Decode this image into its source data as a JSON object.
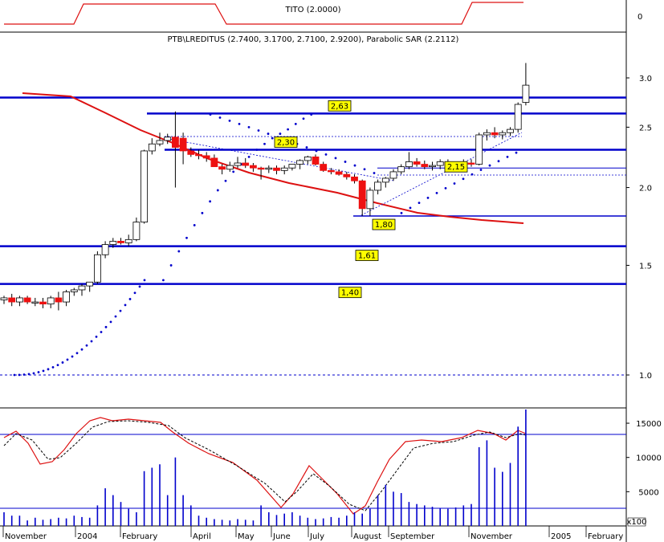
{
  "indicator_top": {
    "title": "TITO (2.0000)",
    "axis_label": "0"
  },
  "main_title": "PTB\\LREDITUS (2.7400, 3.1700, 2.7100, 2.9200), Parabolic SAR (2.2112)",
  "price_axis": {
    "ticks": [
      "3.0",
      "2.5",
      "2.0",
      "1.5",
      "1.0"
    ]
  },
  "volume_axis": {
    "ticks": [
      "15000",
      "10000",
      "5000"
    ],
    "unit": "x100"
  },
  "x_axis": {
    "labels": [
      "November",
      "2004",
      "February",
      "April",
      "May",
      "June",
      "July",
      "August",
      "September",
      "November",
      "2005",
      "February"
    ]
  },
  "price_labels": [
    "2,63",
    "2,30",
    "2,15",
    "1,80",
    "1,61",
    "1,40"
  ],
  "colors": {
    "up": "#ffffff",
    "down": "#ee1111",
    "sar": "#0000cc",
    "hline": "#0000cc",
    "ma": "#dd1111"
  },
  "chart_data": {
    "type": "candlestick",
    "title": "PTB\\LREDITUS (2.7400, 3.1700, 2.7100, 2.9200), Parabolic SAR (2.2112)",
    "ylim": [
      0.97,
      3.3
    ],
    "levels": [
      2.79,
      2.63,
      2.3,
      2.15,
      1.8,
      1.61,
      1.4,
      1.0
    ],
    "candles": [
      [
        1.32,
        1.34,
        1.3,
        1.33
      ],
      [
        1.33,
        1.35,
        1.29,
        1.31
      ],
      [
        1.31,
        1.34,
        1.29,
        1.33
      ],
      [
        1.33,
        1.34,
        1.3,
        1.31
      ],
      [
        1.31,
        1.33,
        1.29,
        1.31
      ],
      [
        1.31,
        1.33,
        1.28,
        1.3
      ],
      [
        1.3,
        1.34,
        1.28,
        1.33
      ],
      [
        1.33,
        1.36,
        1.27,
        1.31
      ],
      [
        1.31,
        1.37,
        1.29,
        1.36
      ],
      [
        1.36,
        1.38,
        1.34,
        1.37
      ],
      [
        1.37,
        1.4,
        1.34,
        1.39
      ],
      [
        1.39,
        1.41,
        1.36,
        1.41
      ],
      [
        1.41,
        1.58,
        1.4,
        1.56
      ],
      [
        1.56,
        1.64,
        1.54,
        1.62
      ],
      [
        1.62,
        1.66,
        1.6,
        1.64
      ],
      [
        1.64,
        1.66,
        1.62,
        1.63
      ],
      [
        1.63,
        1.68,
        1.61,
        1.65
      ],
      [
        1.65,
        1.79,
        1.64,
        1.76
      ],
      [
        1.76,
        2.3,
        1.75,
        2.29
      ],
      [
        2.29,
        2.4,
        2.26,
        2.35
      ],
      [
        2.35,
        2.45,
        2.33,
        2.38
      ],
      [
        2.38,
        2.44,
        2.35,
        2.41
      ],
      [
        2.41,
        2.65,
        2.0,
        2.32
      ],
      [
        2.4,
        2.45,
        2.18,
        2.29
      ],
      [
        2.29,
        2.32,
        2.24,
        2.26
      ],
      [
        2.26,
        2.3,
        2.22,
        2.25
      ],
      [
        2.25,
        2.28,
        2.2,
        2.23
      ],
      [
        2.23,
        2.26,
        2.16,
        2.16
      ],
      [
        2.16,
        2.18,
        2.1,
        2.14
      ],
      [
        2.14,
        2.2,
        2.12,
        2.17
      ],
      [
        2.17,
        2.24,
        2.15,
        2.19
      ],
      [
        2.19,
        2.23,
        2.15,
        2.17
      ],
      [
        2.17,
        2.19,
        2.12,
        2.15
      ],
      [
        2.15,
        2.16,
        2.06,
        2.14
      ],
      [
        2.14,
        2.17,
        2.11,
        2.15
      ],
      [
        2.15,
        2.17,
        2.1,
        2.13
      ],
      [
        2.13,
        2.17,
        2.1,
        2.15
      ],
      [
        2.15,
        2.18,
        2.13,
        2.18
      ],
      [
        2.18,
        2.22,
        2.14,
        2.21
      ],
      [
        2.21,
        2.25,
        2.18,
        2.24
      ],
      [
        2.24,
        2.26,
        2.17,
        2.18
      ],
      [
        2.18,
        2.2,
        2.12,
        2.13
      ],
      [
        2.13,
        2.15,
        2.1,
        2.12
      ],
      [
        2.12,
        2.14,
        2.09,
        2.1
      ],
      [
        2.1,
        2.12,
        2.06,
        2.08
      ],
      [
        2.08,
        2.1,
        2.03,
        2.05
      ],
      [
        2.05,
        2.06,
        1.8,
        1.85
      ],
      [
        1.85,
        2.0,
        1.8,
        1.98
      ],
      [
        1.98,
        2.06,
        1.95,
        2.04
      ],
      [
        2.04,
        2.08,
        2.0,
        2.07
      ],
      [
        2.07,
        2.14,
        2.05,
        2.12
      ],
      [
        2.12,
        2.18,
        2.1,
        2.16
      ],
      [
        2.16,
        2.28,
        2.14,
        2.2
      ],
      [
        2.2,
        2.23,
        2.16,
        2.18
      ],
      [
        2.18,
        2.21,
        2.14,
        2.16
      ],
      [
        2.16,
        2.2,
        2.13,
        2.17
      ],
      [
        2.17,
        2.22,
        2.14,
        2.2
      ],
      [
        2.2,
        2.22,
        2.15,
        2.17
      ],
      [
        2.17,
        2.2,
        2.14,
        2.18
      ],
      [
        2.18,
        2.22,
        2.15,
        2.19
      ],
      [
        2.19,
        2.22,
        2.16,
        2.18
      ],
      [
        2.18,
        2.45,
        2.17,
        2.43
      ],
      [
        2.43,
        2.48,
        2.38,
        2.45
      ],
      [
        2.45,
        2.5,
        2.4,
        2.43
      ],
      [
        2.43,
        2.47,
        2.39,
        2.45
      ],
      [
        2.45,
        2.5,
        2.42,
        2.48
      ],
      [
        2.48,
        2.74,
        2.45,
        2.72
      ],
      [
        2.74,
        3.17,
        2.71,
        2.92
      ]
    ],
    "sar_start_index": 22,
    "sar": [
      1.42,
      1.5,
      1.58,
      1.66,
      1.74,
      1.82,
      1.9,
      1.98,
      2.05,
      2.12,
      2.18,
      2.24,
      2.3,
      2.35,
      2.4,
      2.44,
      2.48,
      2.53,
      2.58,
      2.62
    ],
    "volume_ylim": [
      0,
      17000
    ]
  }
}
